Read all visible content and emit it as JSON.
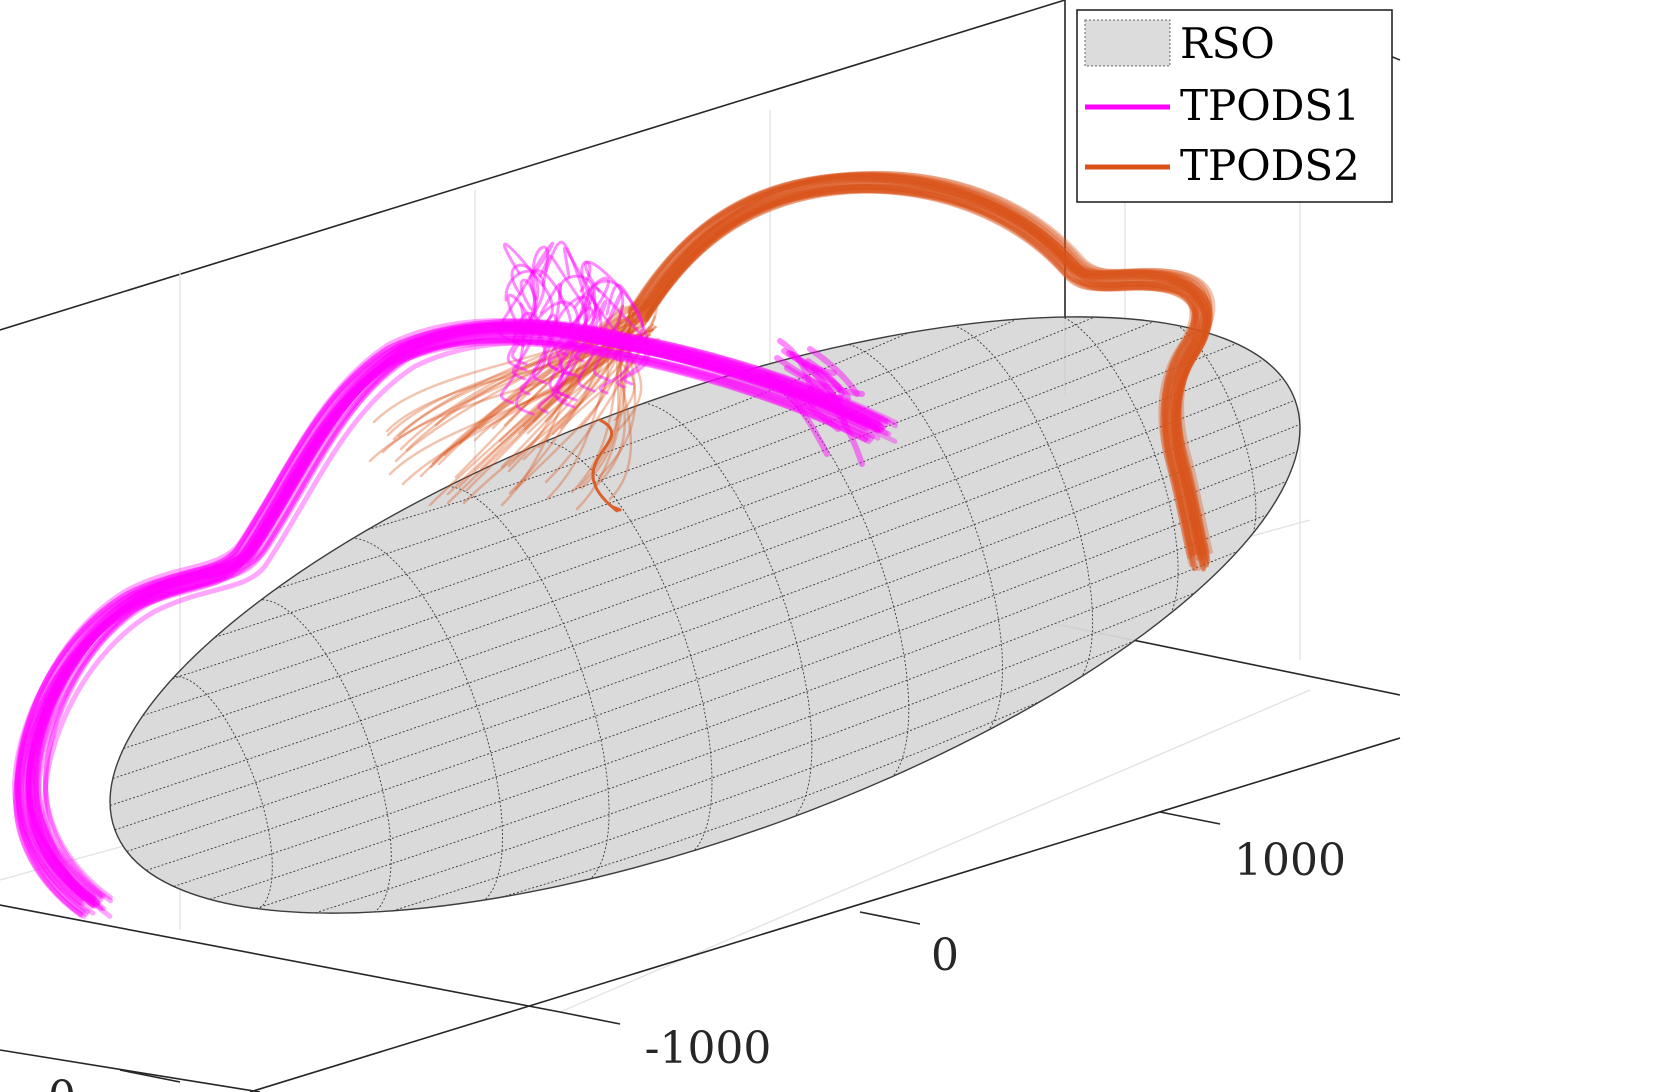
{
  "chart_data": {
    "type": "line",
    "subtype": "3d-trajectories",
    "title": "",
    "xlabel": "",
    "ylabel": "",
    "zlabel": "",
    "grid": true,
    "legend_position": "top-right",
    "ticks": {
      "y": [
        "-1000",
        "0",
        "1000"
      ],
      "x": [
        "0"
      ]
    },
    "series": [
      {
        "name": "RSO",
        "kind": "surface-ellipsoid",
        "color": "#d9d9d9",
        "edge_color": "#333333"
      },
      {
        "name": "TPODS1",
        "kind": "trajectory-ensemble",
        "color": "#ff00ff"
      },
      {
        "name": "TPODS2",
        "kind": "trajectory-ensemble",
        "color": "#d95319"
      }
    ]
  }
}
